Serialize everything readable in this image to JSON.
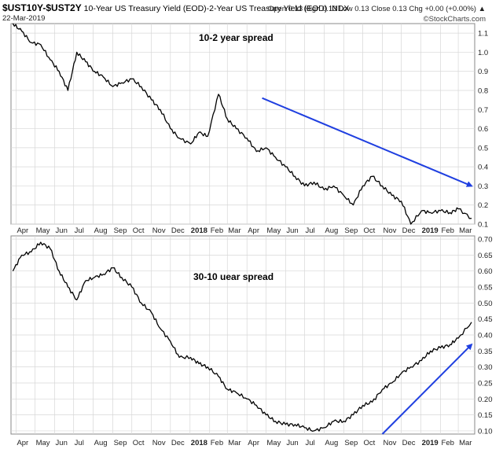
{
  "header": {
    "symbol": "$UST10Y-$UST2Y",
    "description": "10-Year US Treasury Yield (EOD)-2-Year US Treasury Yield (EOD) INDX",
    "date": "22-Mar-2019",
    "ohlc": "Open 0.13  High 0.13  Low 0.13  Close 0.13  Chg +0.00 (+0.00%) ▲",
    "watermark": "©StockCharts.com"
  },
  "colors": {
    "line": "#000000",
    "arrow": "#1f3fe0",
    "grid": "#d7d7d7"
  },
  "chart_data": [
    {
      "type": "line",
      "title": "10-2 year spread",
      "x_tick_labels": [
        "Apr",
        "May",
        "Jun",
        "Jul",
        "Aug",
        "Sep",
        "Oct",
        "Nov",
        "Dec",
        "2018",
        "Feb",
        "Mar",
        "Apr",
        "May",
        "Jun",
        "Jul",
        "Aug",
        "Sep",
        "Oct",
        "Nov",
        "Dec",
        "2019",
        "Feb",
        "Mar"
      ],
      "y_ticks": [
        "1.1",
        "1.0",
        "0.9",
        "0.8",
        "0.7",
        "0.6",
        "0.5",
        "0.4",
        "0.3",
        "0.2",
        "0.1"
      ],
      "ylim": [
        0.1,
        1.15
      ],
      "grid": true,
      "series": [
        {
          "x": [
            "2017-03-27",
            "2017-04-10",
            "2017-04-25",
            "2017-05-10",
            "2017-05-25",
            "2017-06-08",
            "2017-06-22",
            "2017-07-06",
            "2017-07-20",
            "2017-08-03",
            "2017-08-17",
            "2017-09-01",
            "2017-09-15",
            "2017-10-01",
            "2017-10-16",
            "2017-11-01",
            "2017-11-15",
            "2017-12-01",
            "2017-12-15",
            "2018-01-02",
            "2018-01-15",
            "2018-01-29",
            "2018-02-15",
            "2018-03-01",
            "2018-03-15",
            "2018-04-01",
            "2018-04-16",
            "2018-05-01",
            "2018-05-16",
            "2018-06-01",
            "2018-06-16",
            "2018-07-01",
            "2018-07-16",
            "2018-08-01",
            "2018-08-16",
            "2018-09-01",
            "2018-09-16",
            "2018-10-01",
            "2018-10-16",
            "2018-11-01",
            "2018-11-16",
            "2018-12-01",
            "2018-12-16",
            "2019-01-02",
            "2019-01-16",
            "2019-02-01",
            "2019-02-16",
            "2019-03-01",
            "2019-03-22"
          ],
          "y": [
            1.15,
            1.11,
            1.05,
            1.04,
            0.96,
            0.9,
            0.8,
            1.0,
            0.95,
            0.9,
            0.87,
            0.82,
            0.84,
            0.86,
            0.82,
            0.75,
            0.7,
            0.6,
            0.55,
            0.52,
            0.58,
            0.56,
            0.78,
            0.65,
            0.6,
            0.55,
            0.48,
            0.5,
            0.45,
            0.4,
            0.35,
            0.3,
            0.32,
            0.28,
            0.3,
            0.25,
            0.2,
            0.3,
            0.35,
            0.3,
            0.25,
            0.22,
            0.1,
            0.17,
            0.16,
            0.17,
            0.16,
            0.18,
            0.13
          ]
        }
      ],
      "annotation_arrow": {
        "from": [
          "2018-04-25",
          0.76
        ],
        "to": [
          "2019-03-22",
          0.3
        ]
      }
    },
    {
      "type": "line",
      "title": "30-10 uear spread",
      "x_tick_labels": [
        "Apr",
        "May",
        "Jun",
        "Jul",
        "Aug",
        "Sep",
        "Oct",
        "Nov",
        "Dec",
        "2018",
        "Feb",
        "Mar",
        "Apr",
        "May",
        "Jun",
        "Jul",
        "Aug",
        "Sep",
        "Oct",
        "Nov",
        "Dec",
        "2019",
        "Feb",
        "Mar"
      ],
      "y_ticks": [
        "0.70",
        "0.65",
        "0.60",
        "0.55",
        "0.50",
        "0.45",
        "0.40",
        "0.35",
        "0.30",
        "0.25",
        "0.20",
        "0.15",
        "0.10"
      ],
      "ylim": [
        0.09,
        0.71
      ],
      "grid": true,
      "series": [
        {
          "x": [
            "2017-03-27",
            "2017-04-10",
            "2017-04-25",
            "2017-05-10",
            "2017-05-25",
            "2017-06-08",
            "2017-06-22",
            "2017-07-06",
            "2017-07-20",
            "2017-08-03",
            "2017-08-17",
            "2017-09-01",
            "2017-09-15",
            "2017-10-01",
            "2017-10-16",
            "2017-11-01",
            "2017-11-15",
            "2017-12-01",
            "2017-12-15",
            "2018-01-02",
            "2018-01-15",
            "2018-01-29",
            "2018-02-15",
            "2018-03-01",
            "2018-03-15",
            "2018-04-01",
            "2018-04-16",
            "2018-05-01",
            "2018-05-16",
            "2018-06-01",
            "2018-06-16",
            "2018-07-01",
            "2018-07-16",
            "2018-08-01",
            "2018-08-16",
            "2018-09-01",
            "2018-09-16",
            "2018-10-01",
            "2018-10-16",
            "2018-11-01",
            "2018-11-16",
            "2018-12-01",
            "2018-12-16",
            "2019-01-02",
            "2019-01-16",
            "2019-02-01",
            "2019-02-16",
            "2019-03-01",
            "2019-03-22"
          ],
          "y": [
            0.6,
            0.65,
            0.66,
            0.69,
            0.67,
            0.6,
            0.55,
            0.51,
            0.57,
            0.58,
            0.59,
            0.61,
            0.58,
            0.55,
            0.5,
            0.47,
            0.42,
            0.38,
            0.33,
            0.33,
            0.31,
            0.3,
            0.27,
            0.23,
            0.22,
            0.2,
            0.18,
            0.15,
            0.13,
            0.12,
            0.12,
            0.11,
            0.1,
            0.11,
            0.13,
            0.13,
            0.15,
            0.18,
            0.19,
            0.23,
            0.25,
            0.28,
            0.3,
            0.32,
            0.35,
            0.36,
            0.37,
            0.39,
            0.44
          ]
        }
      ],
      "annotation_arrow": {
        "from": [
          "2018-11-01",
          0.09
        ],
        "to": [
          "2019-03-22",
          0.37
        ]
      }
    }
  ]
}
